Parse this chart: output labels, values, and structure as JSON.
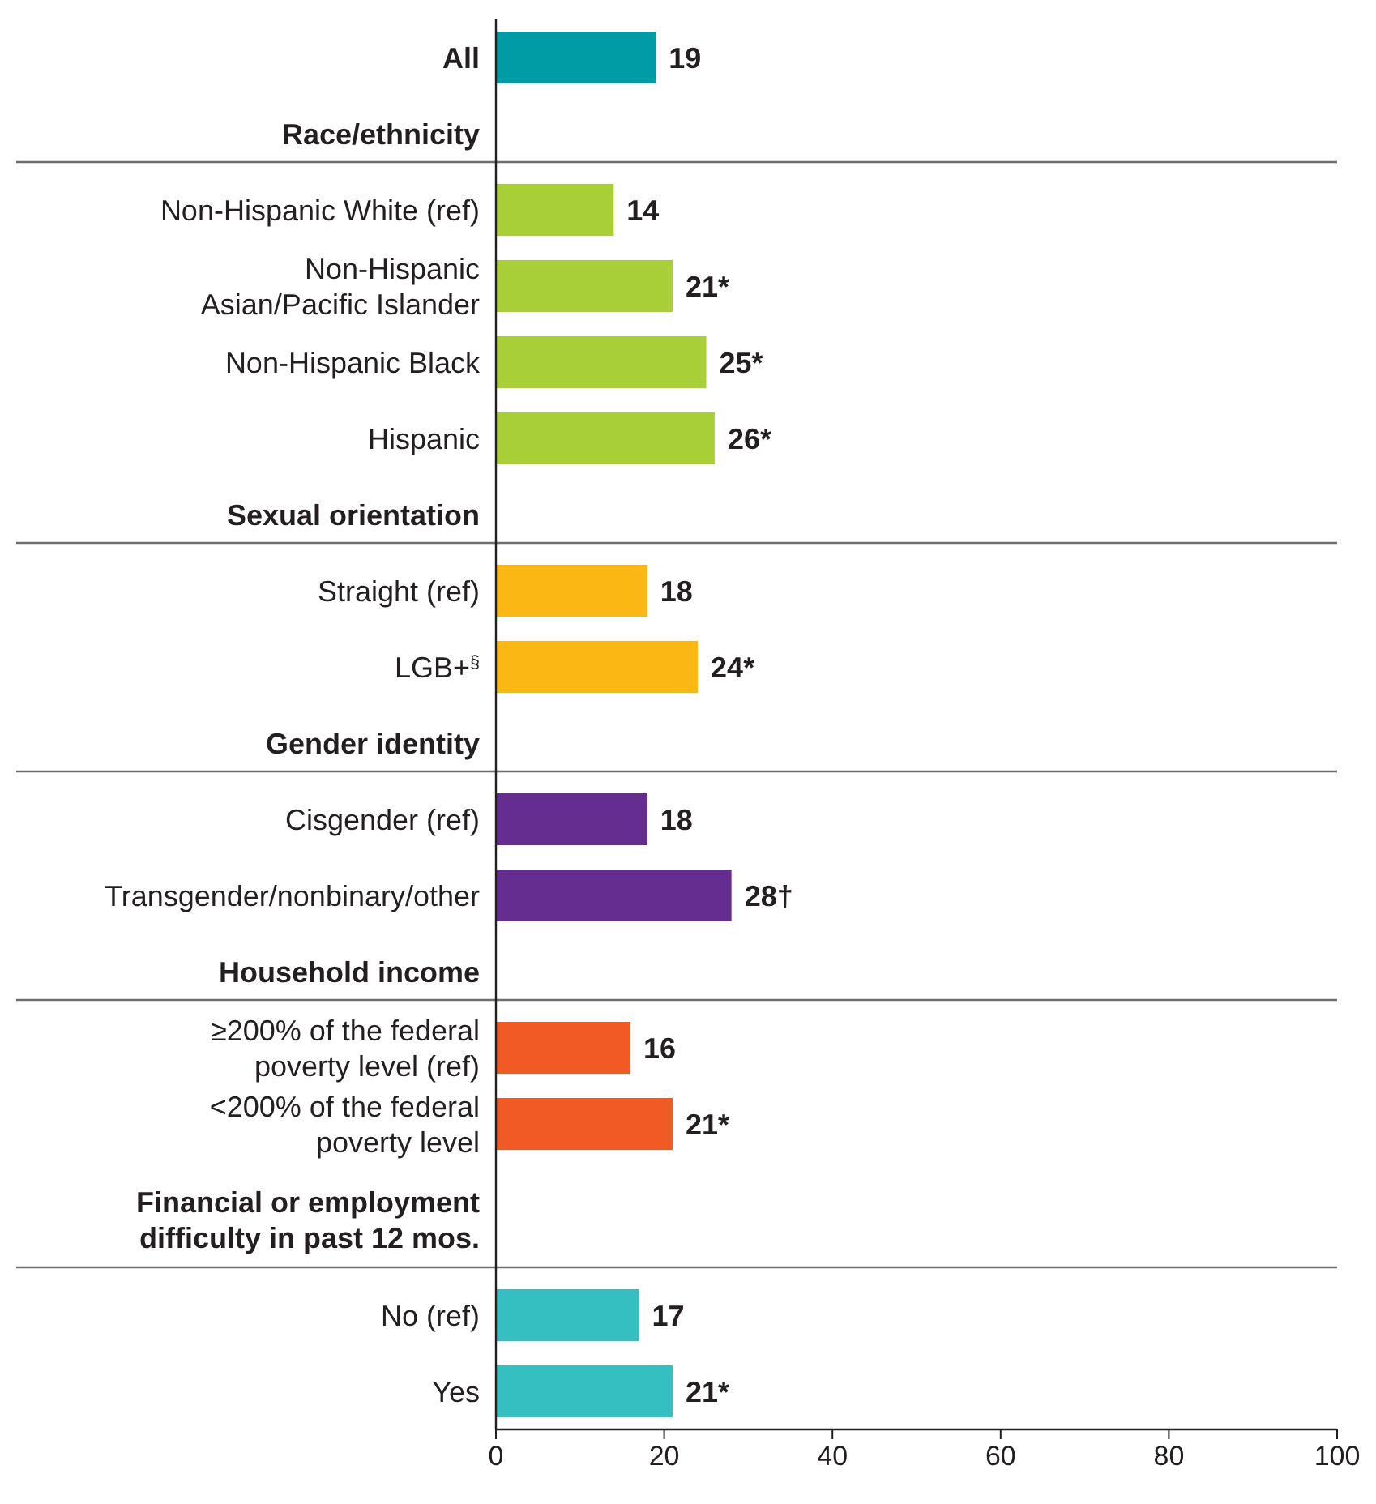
{
  "chart_data": {
    "type": "bar",
    "orientation": "horizontal",
    "categories": [
      "All",
      "Race/ethnicity",
      "Non-Hispanic White (ref)",
      "Non-Hispanic Asian/Pacific Islander",
      "Non-Hispanic Black",
      "Hispanic",
      "Sexual orientation",
      "Straight (ref)",
      "LGB+$^{§}$",
      "Gender identity",
      "Cisgender (ref)",
      "Transgender/nonbinary/other",
      "Household income",
      "≥200% of the federal poverty level (ref)",
      "<200% of the federal poverty level",
      "Financial or employment difficulty in past 12 mos.",
      "No (ref)",
      "Yes"
    ],
    "values": [
      19,
      null,
      14,
      21,
      25,
      26,
      null,
      18,
      24,
      null,
      18,
      28,
      null,
      16,
      21,
      null,
      17,
      21
    ],
    "value_labels": [
      "19",
      null,
      "14",
      "21*",
      "25*",
      "26*",
      null,
      "18",
      "24*",
      null,
      "18",
      "28†",
      null,
      "16",
      "21*",
      null,
      "17",
      "21*"
    ],
    "colors": [
      "#009ca6",
      null,
      "#a8cf38",
      "#a8cf38",
      "#a8cf38",
      "#a8cf38",
      null,
      "#fbb814",
      "#fbb814",
      null,
      "#642d8f",
      "#642d8f",
      null,
      "#f15a24",
      "#f15a24",
      null,
      "#35bfc1",
      "#35bfc1"
    ],
    "xlim": [
      0,
      100
    ],
    "xticks": [
      0,
      20,
      40,
      60,
      80,
      100
    ],
    "grid": false
  }
}
